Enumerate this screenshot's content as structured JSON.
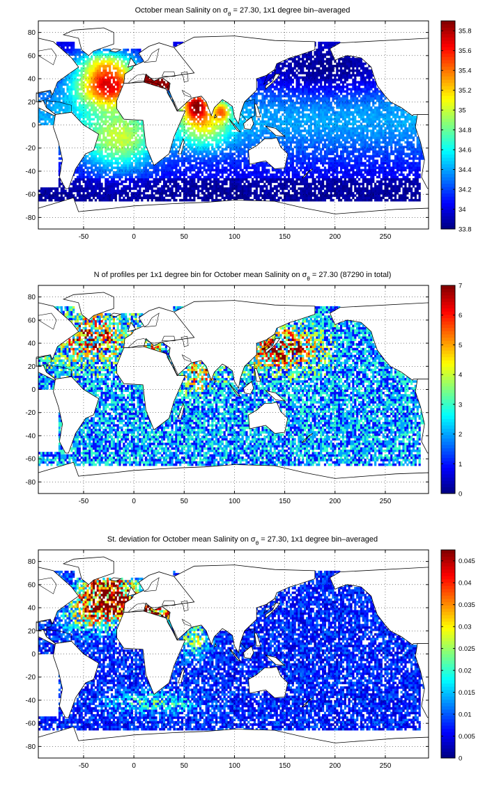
{
  "chart_data": [
    {
      "type": "heatmap",
      "title_prefix": "October mean Salinity on ",
      "title_sym": "σ",
      "title_sub": "θ",
      "title_suffix": " = 27.30, 1x1 degree bin–averaged",
      "xlabel": "",
      "ylabel": "",
      "xlim": [
        -95,
        293
      ],
      "ylim": [
        -90,
        90
      ],
      "xticks": [
        -50,
        0,
        50,
        100,
        150,
        200,
        250
      ],
      "yticks": [
        -80,
        -60,
        -40,
        -20,
        0,
        20,
        40,
        60,
        80
      ],
      "grid": true,
      "colorbar": {
        "min": 33.8,
        "max": 35.9,
        "ticks": [
          33.8,
          34,
          34.2,
          34.4,
          34.6,
          34.8,
          35,
          35.2,
          35.4,
          35.6,
          35.8
        ],
        "colormap": "jet",
        "placement": "right"
      }
    },
    {
      "type": "heatmap",
      "title_prefix": "N of profiles per 1x1 degree bin for October mean Salinity on ",
      "title_sym": "σ",
      "title_sub": "θ",
      "title_suffix": " = 27.30 (87290 in total)",
      "xlabel": "",
      "ylabel": "",
      "xlim": [
        -95,
        293
      ],
      "ylim": [
        -90,
        90
      ],
      "xticks": [
        -50,
        0,
        50,
        100,
        150,
        200,
        250
      ],
      "yticks": [
        -80,
        -60,
        -40,
        -20,
        0,
        20,
        40,
        60,
        80
      ],
      "grid": true,
      "colorbar": {
        "min": 0,
        "max": 7,
        "ticks": [
          0,
          1,
          2,
          3,
          4,
          5,
          6,
          7
        ],
        "colormap": "jet",
        "placement": "right"
      }
    },
    {
      "type": "heatmap",
      "title_prefix": "St. deviation for October mean Salinity on ",
      "title_sym": "σ",
      "title_sub": "θ",
      "title_suffix": " = 27.30, 1x1 degree bin–averaged",
      "xlabel": "",
      "ylabel": "",
      "xlim": [
        -95,
        293
      ],
      "ylim": [
        -90,
        90
      ],
      "xticks": [
        -50,
        0,
        50,
        100,
        150,
        200,
        250
      ],
      "yticks": [
        -80,
        -60,
        -40,
        -20,
        0,
        20,
        40,
        60,
        80
      ],
      "grid": true,
      "colorbar": {
        "min": 0,
        "max": 0.0475,
        "ticks": [
          0,
          0.005,
          0.01,
          0.015,
          0.02,
          0.025,
          0.03,
          0.035,
          0.04,
          0.045
        ],
        "colormap": "jet",
        "placement": "right"
      }
    }
  ],
  "continents": [
    {
      "name": "Africa",
      "pts": [
        [
          -17,
          21
        ],
        [
          -10,
          36
        ],
        [
          10,
          37
        ],
        [
          32,
          31
        ],
        [
          43,
          12
        ],
        [
          51,
          12
        ],
        [
          40,
          -10
        ],
        [
          35,
          -25
        ],
        [
          20,
          -35
        ],
        [
          12,
          -18
        ],
        [
          9,
          4
        ],
        [
          -10,
          5
        ],
        [
          -17,
          14
        ]
      ]
    },
    {
      "name": "Europe",
      "pts": [
        [
          -10,
          36
        ],
        [
          -9,
          44
        ],
        [
          -2,
          48
        ],
        [
          0,
          51
        ],
        [
          10,
          55
        ],
        [
          5,
          62
        ],
        [
          15,
          68
        ],
        [
          25,
          71
        ],
        [
          40,
          67
        ],
        [
          60,
          68
        ],
        [
          60,
          45
        ],
        [
          40,
          41
        ],
        [
          28,
          41
        ],
        [
          20,
          38
        ],
        [
          12,
          44
        ],
        [
          10,
          37
        ]
      ]
    },
    {
      "name": "Asia",
      "pts": [
        [
          28,
          41
        ],
        [
          36,
          36
        ],
        [
          35,
          30
        ],
        [
          43,
          12
        ],
        [
          57,
          23
        ],
        [
          67,
          25
        ],
        [
          72,
          20
        ],
        [
          77,
          8
        ],
        [
          80,
          15
        ],
        [
          88,
          22
        ],
        [
          92,
          20
        ],
        [
          98,
          16
        ],
        [
          100,
          7
        ],
        [
          104,
          1
        ],
        [
          106,
          10
        ],
        [
          110,
          20
        ],
        [
          122,
          30
        ],
        [
          122,
          40
        ],
        [
          132,
          43
        ],
        [
          140,
          48
        ],
        [
          142,
          53
        ],
        [
          155,
          58
        ],
        [
          163,
          60
        ],
        [
          180,
          65
        ],
        [
          180,
          72
        ],
        [
          140,
          73
        ],
        [
          100,
          77
        ],
        [
          60,
          76
        ],
        [
          40,
          67
        ],
        [
          60,
          45
        ]
      ]
    },
    {
      "name": "NorthAmerica",
      "pts": [
        [
          -55,
          50
        ],
        [
          -65,
          44
        ],
        [
          -76,
          37
        ],
        [
          -81,
          26
        ],
        [
          -83,
          30
        ],
        [
          -97,
          27
        ],
        [
          -97,
          20
        ],
        [
          -90,
          21
        ],
        [
          -87,
          15
        ],
        [
          -78,
          9
        ],
        [
          -79,
          8
        ],
        [
          -95,
          15
        ],
        [
          -95,
          75
        ],
        [
          -80,
          72
        ],
        [
          -62,
          58
        ]
      ]
    },
    {
      "name": "Alaska",
      "pts": [
        [
          195,
          66
        ],
        [
          197,
          62
        ],
        [
          200,
          56
        ],
        [
          205,
          58
        ],
        [
          212,
          60
        ],
        [
          220,
          59
        ],
        [
          226,
          58
        ],
        [
          236,
          50
        ],
        [
          238,
          44
        ],
        [
          242,
          34
        ],
        [
          250,
          25
        ],
        [
          255,
          20
        ],
        [
          266,
          15
        ],
        [
          277,
          8
        ],
        [
          278,
          9
        ],
        [
          293,
          9
        ],
        [
          293,
          75
        ],
        [
          205,
          71
        ]
      ]
    },
    {
      "name": "SouthAmerica",
      "pts": [
        [
          -78,
          9
        ],
        [
          -80,
          -2
        ],
        [
          -75,
          -15
        ],
        [
          -71,
          -30
        ],
        [
          -74,
          -45
        ],
        [
          -68,
          -55
        ],
        [
          -65,
          -55
        ],
        [
          -58,
          -38
        ],
        [
          -48,
          -25
        ],
        [
          -40,
          -22
        ],
        [
          -35,
          -8
        ],
        [
          -50,
          0
        ],
        [
          -62,
          11
        ]
      ]
    },
    {
      "name": "SouthAmericaE",
      "pts": [
        [
          282,
          9
        ],
        [
          280,
          -2
        ],
        [
          285,
          -15
        ],
        [
          289,
          -30
        ],
        [
          286,
          -45
        ],
        [
          292,
          -55
        ],
        [
          293,
          -55
        ],
        [
          293,
          9
        ]
      ]
    },
    {
      "name": "Australia",
      "pts": [
        [
          114,
          -22
        ],
        [
          122,
          -18
        ],
        [
          130,
          -12
        ],
        [
          137,
          -12
        ],
        [
          142,
          -11
        ],
        [
          146,
          -19
        ],
        [
          153,
          -25
        ],
        [
          150,
          -37
        ],
        [
          140,
          -38
        ],
        [
          131,
          -31
        ],
        [
          115,
          -34
        ]
      ]
    },
    {
      "name": "Greenland",
      "pts": [
        [
          -45,
          60
        ],
        [
          -52,
          65
        ],
        [
          -55,
          75
        ],
        [
          -70,
          78
        ],
        [
          -60,
          82
        ],
        [
          -30,
          84
        ],
        [
          -20,
          80
        ],
        [
          -20,
          70
        ],
        [
          -40,
          64
        ]
      ]
    },
    {
      "name": "Madagascar",
      "pts": [
        [
          44,
          -25
        ],
        [
          49,
          -12
        ],
        [
          50,
          -15
        ],
        [
          47,
          -25
        ]
      ]
    },
    {
      "name": "Antarctica",
      "pts": [
        [
          -95,
          -72
        ],
        [
          -60,
          -63
        ],
        [
          -55,
          -75
        ],
        [
          -20,
          -72
        ],
        [
          0,
          -70
        ],
        [
          40,
          -68
        ],
        [
          70,
          -67
        ],
        [
          100,
          -65
        ],
        [
          140,
          -66
        ],
        [
          170,
          -72
        ],
        [
          200,
          -77
        ],
        [
          230,
          -75
        ],
        [
          260,
          -73
        ],
        [
          293,
          -72
        ],
        [
          293,
          -90
        ],
        [
          -95,
          -90
        ]
      ]
    },
    {
      "name": "UK",
      "pts": [
        [
          -6,
          50
        ],
        [
          -3,
          58
        ],
        [
          2,
          52
        ]
      ]
    },
    {
      "name": "Japan",
      "pts": [
        [
          131,
          31
        ],
        [
          136,
          35
        ],
        [
          142,
          40
        ],
        [
          145,
          44
        ],
        [
          141,
          44
        ],
        [
          138,
          38
        ],
        [
          131,
          34
        ]
      ]
    },
    {
      "name": "Borneo",
      "pts": [
        [
          109,
          1
        ],
        [
          117,
          7
        ],
        [
          119,
          1
        ],
        [
          116,
          -4
        ],
        [
          110,
          -3
        ]
      ]
    },
    {
      "name": "Sumatra",
      "pts": [
        [
          95,
          5
        ],
        [
          106,
          -6
        ],
        [
          103,
          -5
        ],
        [
          97,
          2
        ]
      ]
    },
    {
      "name": "NewGuinea",
      "pts": [
        [
          131,
          -1
        ],
        [
          141,
          -3
        ],
        [
          150,
          -10
        ],
        [
          141,
          -9
        ]
      ]
    },
    {
      "name": "NZ",
      "pts": [
        [
          167,
          -46
        ],
        [
          173,
          -41
        ],
        [
          178,
          -38
        ],
        [
          174,
          -40
        ],
        [
          170,
          -45
        ]
      ]
    },
    {
      "name": "Iceland",
      "pts": [
        [
          -24,
          64
        ],
        [
          -20,
          66
        ],
        [
          -13,
          65
        ],
        [
          -18,
          63
        ]
      ]
    },
    {
      "name": "SriLanka",
      "pts": [
        [
          80,
          6
        ],
        [
          81,
          9
        ],
        [
          82,
          7
        ]
      ]
    },
    {
      "name": "Philippines",
      "pts": [
        [
          120,
          18
        ],
        [
          122,
          18
        ],
        [
          126,
          7
        ],
        [
          122,
          7
        ]
      ]
    }
  ],
  "seas": [
    {
      "name": "Mediterranean",
      "pts": [
        [
          -5,
          36
        ],
        [
          5,
          38
        ],
        [
          15,
          38
        ],
        [
          25,
          35
        ],
        [
          32,
          31
        ],
        [
          36,
          36
        ],
        [
          28,
          41
        ],
        [
          20,
          40
        ],
        [
          15,
          41
        ],
        [
          10,
          44
        ],
        [
          3,
          43
        ],
        [
          -5,
          37
        ]
      ]
    },
    {
      "name": "RedSea",
      "pts": [
        [
          33,
          28
        ],
        [
          43,
          13
        ],
        [
          44,
          13
        ],
        [
          35,
          29
        ]
      ]
    },
    {
      "name": "PersianGulf",
      "pts": [
        [
          48,
          30
        ],
        [
          56,
          26
        ],
        [
          57,
          24
        ],
        [
          50,
          26
        ]
      ]
    },
    {
      "name": "BlackSea",
      "pts": [
        [
          28,
          42
        ],
        [
          41,
          42
        ],
        [
          40,
          46
        ],
        [
          30,
          46
        ]
      ]
    },
    {
      "name": "Baltic",
      "pts": [
        [
          10,
          54
        ],
        [
          22,
          55
        ],
        [
          25,
          66
        ],
        [
          18,
          62
        ],
        [
          14,
          56
        ]
      ]
    },
    {
      "name": "Caspian",
      "pts": [
        [
          47,
          45
        ],
        [
          53,
          46
        ],
        [
          54,
          38
        ],
        [
          50,
          37
        ],
        [
          49,
          42
        ]
      ]
    },
    {
      "name": "HudsonBay",
      "pts": [
        [
          -95,
          60
        ],
        [
          -80,
          52
        ],
        [
          -77,
          60
        ],
        [
          -82,
          66
        ],
        [
          -95,
          64
        ]
      ]
    },
    {
      "name": "GulfMexico",
      "pts": [
        [
          -97,
          20
        ],
        [
          -90,
          21
        ],
        [
          -82,
          24
        ],
        [
          -83,
          30
        ],
        [
          -97,
          28
        ]
      ]
    },
    {
      "name": "Caribbean",
      "pts": [
        [
          -87,
          15
        ],
        [
          -78,
          9
        ],
        [
          -62,
          11
        ],
        [
          -62,
          17
        ],
        [
          -75,
          20
        ],
        [
          -87,
          21
        ]
      ]
    },
    {
      "name": "SeaOfJapan",
      "pts": [
        [
          129,
          35
        ],
        [
          140,
          43
        ],
        [
          141,
          48
        ],
        [
          133,
          44
        ]
      ]
    },
    {
      "name": "SouthChinaSea",
      "pts": [
        [
          106,
          10
        ],
        [
          110,
          20
        ],
        [
          120,
          22
        ],
        [
          120,
          8
        ],
        [
          112,
          4
        ]
      ]
    }
  ]
}
